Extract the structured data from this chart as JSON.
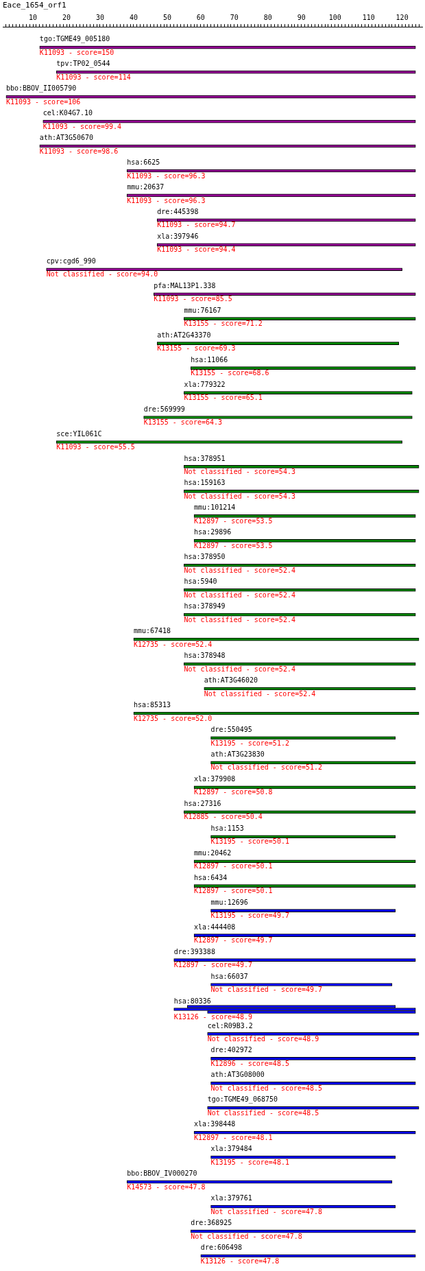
{
  "chart_data": {
    "type": "bar",
    "orientation": "horizontal",
    "title": "Eace_1654_orf1",
    "categories": [
      "tgo:TGME49_005180",
      "tpv:TP02_0544",
      "bbo:BBOV_II005790",
      "cel:K04G7.10",
      "ath:AT3G50670",
      "hsa:6625",
      "mmu:20637",
      "dre:445398",
      "xla:397946",
      "cpv:cgd6_990",
      "pfa:MAL13P1.338",
      "mmu:76167",
      "ath:AT2G43370",
      "hsa:11066",
      "xla:779322",
      "dre:569999",
      "sce:YIL061C",
      "hsa:378951",
      "hsa:159163",
      "mmu:101214",
      "hsa:29896",
      "hsa:378950",
      "hsa:5940",
      "hsa:378949",
      "mmu:67418",
      "hsa:378948",
      "ath:AT3G46020",
      "hsa:85313",
      "dre:550495",
      "ath:AT3G23830",
      "xla:379908",
      "hsa:27316",
      "hsa:1153",
      "mmu:20462",
      "hsa:6434",
      "mmu:12696",
      "xla:444408",
      "dre:393388",
      "hsa:66037",
      "hsa:80336",
      "cel:R09B3.2",
      "dre:402972",
      "ath:AT3G08000",
      "tgo:TGME49_068750",
      "xla:398448",
      "xla:379484",
      "bbo:BBOV_IV000270",
      "xla:379761",
      "dre:368925",
      "dre:606498"
    ],
    "series": [
      {
        "values": [
          null,
          null,
          null,
          null,
          null,
          null,
          null,
          null,
          null,
          null,
          null,
          null,
          null,
          null,
          null,
          null,
          null,
          null,
          null,
          null,
          null,
          null,
          null,
          null,
          null,
          null,
          null,
          null,
          null,
          null,
          null,
          null,
          null,
          null,
          null,
          null,
          null,
          null,
          null,
          62,
          null,
          null,
          null,
          null,
          null,
          null,
          null,
          null,
          null,
          null
        ],
        "base": [
          null,
          null,
          null,
          null,
          null,
          null,
          null,
          null,
          null,
          null,
          null,
          null,
          null,
          null,
          null,
          null,
          null,
          null,
          null,
          null,
          null,
          null,
          null,
          null,
          null,
          null,
          null,
          null,
          null,
          null,
          null,
          null,
          null,
          null,
          null,
          null,
          null,
          null,
          null,
          56,
          null,
          null,
          null,
          null,
          null,
          null,
          null,
          null,
          null,
          null
        ],
        "color": "#0000ff"
      },
      {
        "values": [
          112,
          107,
          122,
          111,
          112,
          86,
          86,
          77,
          77,
          106,
          78,
          69,
          72,
          67,
          68,
          80,
          103,
          70,
          70,
          66,
          66,
          69,
          69,
          69,
          85,
          69,
          63,
          85,
          55,
          61,
          66,
          69,
          55,
          66,
          66,
          55,
          66,
          72,
          54,
          72,
          63,
          61,
          61,
          63,
          66,
          55,
          79,
          55,
          67,
          64
        ],
        "base": [
          12,
          17,
          2,
          13,
          12,
          38,
          38,
          47,
          47,
          14,
          46,
          55,
          47,
          57,
          55,
          43,
          17,
          55,
          55,
          58,
          58,
          55,
          55,
          55,
          40,
          55,
          61,
          40,
          63,
          63,
          58,
          55,
          63,
          58,
          58,
          63,
          58,
          52,
          63,
          52,
          62,
          63,
          63,
          62,
          58,
          63,
          38,
          63,
          57,
          60
        ],
        "colors": [
          "#990099",
          "#990099",
          "#990099",
          "#990099",
          "#990099",
          "#990099",
          "#990099",
          "#990099",
          "#990099",
          "#990099",
          "#990099",
          "#008800",
          "#008800",
          "#008800",
          "#008800",
          "#008800",
          "#008800",
          "#008800",
          "#008800",
          "#008800",
          "#008800",
          "#008800",
          "#008800",
          "#008800",
          "#008800",
          "#008800",
          "#008800",
          "#008800",
          "#008800",
          "#008800",
          "#008800",
          "#008800",
          "#008800",
          "#008800",
          "#008800",
          "#0000ff",
          "#0000ff",
          "#0000ff",
          "#0000ff",
          "#0000ff",
          "#0000ff",
          "#0000ff",
          "#0000ff",
          "#0000ff",
          "#0000ff",
          "#0000ff",
          "#0000ff",
          "#0000ff",
          "#0000ff",
          "#0000ff"
        ]
      },
      {
        "values": [
          null,
          null,
          null,
          null,
          null,
          null,
          null,
          null,
          null,
          null,
          null,
          null,
          null,
          null,
          null,
          null,
          null,
          null,
          null,
          null,
          null,
          null,
          null,
          null,
          null,
          null,
          null,
          null,
          null,
          null,
          null,
          null,
          null,
          null,
          null,
          null,
          null,
          null,
          null,
          62,
          null,
          null,
          null,
          null,
          null,
          null,
          null,
          null,
          null,
          null
        ],
        "base": [
          null,
          null,
          null,
          null,
          null,
          null,
          null,
          null,
          null,
          null,
          null,
          null,
          null,
          null,
          null,
          null,
          null,
          null,
          null,
          null,
          null,
          null,
          null,
          null,
          null,
          null,
          null,
          null,
          null,
          null,
          null,
          null,
          null,
          null,
          null,
          null,
          null,
          null,
          null,
          62,
          null,
          null,
          null,
          null,
          null,
          null,
          null,
          null,
          null,
          null
        ],
        "color": "#0000ff"
      }
    ],
    "xlim": [
      1,
      126
    ],
    "xticks": [
      {
        "value": 2,
        "label": null
      },
      {
        "value": 3,
        "label": null
      },
      {
        "value": 4,
        "label": null
      },
      {
        "value": 5,
        "label": null
      },
      {
        "value": 6,
        "label": null
      },
      {
        "value": 7,
        "label": null
      },
      {
        "value": 8,
        "label": null
      },
      {
        "value": 9,
        "label": null
      },
      10,
      {
        "value": 11,
        "label": null
      },
      {
        "value": 12,
        "label": null
      },
      {
        "value": 13,
        "label": null
      },
      {
        "value": 14,
        "label": null
      },
      {
        "value": 15,
        "label": null
      },
      {
        "value": 16,
        "label": null
      },
      {
        "value": 17,
        "label": null
      },
      {
        "value": 18,
        "label": null
      },
      {
        "value": 19,
        "label": null
      },
      20,
      {
        "value": 21,
        "label": null
      },
      {
        "value": 22,
        "label": null
      },
      {
        "value": 23,
        "label": null
      },
      {
        "value": 24,
        "label": null
      },
      {
        "value": 25,
        "label": null
      },
      {
        "value": 26,
        "label": null
      },
      {
        "value": 27,
        "label": null
      },
      {
        "value": 28,
        "label": null
      },
      {
        "value": 29,
        "label": null
      },
      30,
      {
        "value": 31,
        "label": null
      },
      {
        "value": 32,
        "label": null
      },
      {
        "value": 33,
        "label": null
      },
      {
        "value": 34,
        "label": null
      },
      {
        "value": 35,
        "label": null
      },
      {
        "value": 36,
        "label": null
      },
      {
        "value": 37,
        "label": null
      },
      {
        "value": 38,
        "label": null
      },
      {
        "value": 39,
        "label": null
      },
      40,
      {
        "value": 41,
        "label": null
      },
      {
        "value": 42,
        "label": null
      },
      {
        "value": 43,
        "label": null
      },
      {
        "value": 44,
        "label": null
      },
      {
        "value": 45,
        "label": null
      },
      {
        "value": 46,
        "label": null
      },
      {
        "value": 47,
        "label": null
      },
      {
        "value": 48,
        "label": null
      },
      {
        "value": 49,
        "label": null
      },
      50,
      {
        "value": 51,
        "label": null
      },
      {
        "value": 52,
        "label": null
      },
      {
        "value": 53,
        "label": null
      },
      {
        "value": 54,
        "label": null
      },
      {
        "value": 55,
        "label": null
      },
      {
        "value": 56,
        "label": null
      },
      {
        "value": 57,
        "label": null
      },
      {
        "value": 58,
        "label": null
      },
      {
        "value": 59,
        "label": null
      },
      60,
      {
        "value": 61,
        "label": null
      },
      {
        "value": 62,
        "label": null
      },
      {
        "value": 63,
        "label": null
      },
      {
        "value": 64,
        "label": null
      },
      {
        "value": 65,
        "label": null
      },
      {
        "value": 66,
        "label": null
      },
      {
        "value": 67,
        "label": null
      },
      {
        "value": 68,
        "label": null
      },
      {
        "value": 69,
        "label": null
      },
      70,
      {
        "value": 71,
        "label": null
      },
      {
        "value": 72,
        "label": null
      },
      {
        "value": 73,
        "label": null
      },
      {
        "value": 74,
        "label": null
      },
      {
        "value": 75,
        "label": null
      },
      {
        "value": 76,
        "label": null
      },
      {
        "value": 77,
        "label": null
      },
      {
        "value": 78,
        "label": null
      },
      {
        "value": 79,
        "label": null
      },
      80,
      {
        "value": 81,
        "label": null
      },
      {
        "value": 82,
        "label": null
      },
      {
        "value": 83,
        "label": null
      },
      {
        "value": 84,
        "label": null
      },
      {
        "value": 85,
        "label": null
      },
      {
        "value": 86,
        "label": null
      },
      {
        "value": 87,
        "label": null
      },
      {
        "value": 88,
        "label": null
      },
      {
        "value": 89,
        "label": null
      },
      90,
      {
        "value": 91,
        "label": null
      },
      {
        "value": 92,
        "label": null
      },
      {
        "value": 93,
        "label": null
      },
      {
        "value": 94,
        "label": null
      },
      {
        "value": 95,
        "label": null
      },
      {
        "value": 96,
        "label": null
      },
      {
        "value": 97,
        "label": null
      },
      {
        "value": 98,
        "label": null
      },
      {
        "value": 99,
        "label": null
      },
      100,
      {
        "value": 101,
        "label": null
      },
      {
        "value": 102,
        "label": null
      },
      {
        "value": 103,
        "label": null
      },
      {
        "value": 104,
        "label": null
      },
      {
        "value": 105,
        "label": null
      },
      {
        "value": 106,
        "label": null
      },
      {
        "value": 107,
        "label": null
      },
      {
        "value": 108,
        "label": null
      },
      {
        "value": 109,
        "label": null
      },
      110,
      {
        "value": 111,
        "label": null
      },
      {
        "value": 112,
        "label": null
      },
      {
        "value": 113,
        "label": null
      },
      {
        "value": 114,
        "label": null
      },
      {
        "value": 115,
        "label": null
      },
      {
        "value": 116,
        "label": null
      },
      {
        "value": 117,
        "label": null
      },
      {
        "value": 118,
        "label": null
      },
      {
        "value": 119,
        "label": null
      },
      120,
      {
        "value": 121,
        "label": null
      },
      {
        "value": 122,
        "label": null
      },
      {
        "value": 123,
        "label": null
      },
      {
        "value": 124,
        "label": null
      },
      {
        "value": 125,
        "label": null
      }
    ],
    "annotations": [
      "K11093 - score=150",
      "K11093 - score=114",
      "K11093 - score=106",
      "K11093 - score=99.4",
      "K11093 - score=98.6",
      "K11093 - score=96.3",
      "K11093 - score=96.3",
      "K11093 - score=94.7",
      "K11093 - score=94.4",
      "Not classified - score=94.0",
      "K11093 - score=85.5",
      "K13155 - score=71.2",
      "K13155 - score=69.3",
      "K13155 - score=68.6",
      "K13155 - score=65.1",
      "K13155 - score=64.3",
      "K11093 - score=55.5",
      "Not classified - score=54.3",
      "Not classified - score=54.3",
      "K12897 - score=53.5",
      "K12897 - score=53.5",
      "Not classified - score=52.4",
      "Not classified - score=52.4",
      "Not classified - score=52.4",
      "K12735 - score=52.4",
      "Not classified - score=52.4",
      "Not classified - score=52.4",
      "K12735 - score=52.0",
      "K13195 - score=51.2",
      "Not classified - score=51.2",
      "K12897 - score=50.8",
      "K12885 - score=50.4",
      "K13195 - score=50.1",
      "K12897 - score=50.1",
      "K12897 - score=50.1",
      "K13195 - score=49.7",
      "K12897 - score=49.7",
      "K12897 - score=49.7",
      "Not classified - score=49.7",
      "K13126 - score=48.9",
      "Not classified - score=48.9",
      "K12896 - score=48.5",
      "Not classified - score=48.5",
      "Not classified - score=48.5",
      "K12897 - score=48.1",
      "K13195 - score=48.1",
      "K14573 - score=47.8",
      "Not classified - score=47.8",
      "Not classified - score=47.8",
      "K13126 - score=47.8"
    ],
    "grid": false,
    "legend": false
  }
}
